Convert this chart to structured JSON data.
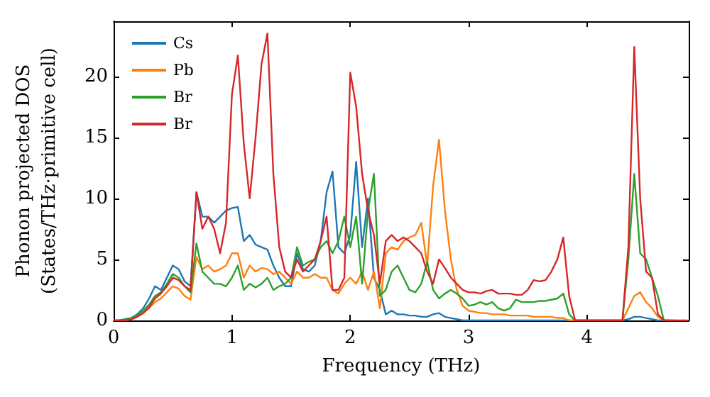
{
  "chart_data": {
    "type": "line",
    "xlabel": "Frequency (THz)",
    "ylabel": "Phonon projected DOS\n(States/THz·primitive cell)",
    "x": [
      0,
      0.05,
      0.1,
      0.15,
      0.2,
      0.25,
      0.3,
      0.35,
      0.4,
      0.45,
      0.5,
      0.55,
      0.6,
      0.65,
      0.7,
      0.75,
      0.8,
      0.85,
      0.9,
      0.95,
      1,
      1.05,
      1.1,
      1.15,
      1.2,
      1.25,
      1.3,
      1.35,
      1.4,
      1.45,
      1.5,
      1.55,
      1.6,
      1.65,
      1.7,
      1.75,
      1.8,
      1.85,
      1.9,
      1.95,
      2,
      2.05,
      2.1,
      2.15,
      2.2,
      2.25,
      2.3,
      2.35,
      2.4,
      2.45,
      2.5,
      2.55,
      2.6,
      2.65,
      2.7,
      2.75,
      2.8,
      2.85,
      2.9,
      2.95,
      3,
      3.05,
      3.1,
      3.15,
      3.2,
      3.25,
      3.3,
      3.35,
      3.4,
      3.45,
      3.5,
      3.55,
      3.6,
      3.65,
      3.7,
      3.75,
      3.8,
      3.85,
      3.9,
      3.95,
      4,
      4.05,
      4.1,
      4.15,
      4.2,
      4.25,
      4.3,
      4.35,
      4.4,
      4.45,
      4.5,
      4.55,
      4.6,
      4.65,
      4.7,
      4.75,
      4.8,
      4.85
    ],
    "series": [
      {
        "name": "Cs",
        "color": "#1f77b4",
        "values": [
          0,
          0,
          0.1,
          0.2,
          0.5,
          1,
          1.8,
          2.8,
          2.5,
          3.5,
          4.5,
          4.2,
          3.2,
          2.8,
          10.5,
          8.5,
          8.5,
          8,
          8.5,
          9,
          9.2,
          9.3,
          6.5,
          7,
          6.2,
          6,
          5.8,
          4.5,
          3.5,
          2.8,
          2.8,
          5.5,
          4.2,
          4,
          4.5,
          6.5,
          10.5,
          12.2,
          6,
          5.5,
          7,
          13,
          6,
          10,
          3.5,
          2.5,
          0.5,
          0.8,
          0.5,
          0.5,
          0.4,
          0.4,
          0.3,
          0.3,
          0.5,
          0.6,
          0.3,
          0.2,
          0.1,
          0,
          0,
          0,
          0,
          0,
          0,
          0,
          0,
          0,
          0,
          0,
          0,
          0,
          0,
          0,
          0,
          0,
          0,
          0,
          0,
          0,
          0,
          0,
          0,
          0,
          0,
          0,
          0,
          0.1,
          0.3,
          0.3,
          0.2,
          0.1,
          0,
          0,
          0,
          null,
          null,
          null
        ]
      },
      {
        "name": "Pb",
        "color": "#ff7f0e",
        "values": [
          null,
          null,
          0,
          0.1,
          0.3,
          0.6,
          1,
          1.5,
          1.8,
          2.3,
          2.8,
          2.6,
          2,
          1.7,
          5.2,
          4.2,
          4.5,
          4,
          4.2,
          4.5,
          5.5,
          5.5,
          3.5,
          4.5,
          4,
          4.3,
          4.2,
          3.8,
          4,
          3.5,
          3,
          4,
          3.5,
          3.5,
          3.8,
          3.5,
          3.5,
          2.5,
          2.2,
          3,
          3.5,
          3,
          4,
          2.5,
          4,
          1,
          5.5,
          6,
          5.8,
          6.5,
          6.8,
          7,
          8,
          4.5,
          11,
          14.8,
          9,
          5,
          2.5,
          1.2,
          0.8,
          0.7,
          0.6,
          0.6,
          0.5,
          0.5,
          0.5,
          0.4,
          0.4,
          0.4,
          0.4,
          0.3,
          0.3,
          0.3,
          0.3,
          0.2,
          0.2,
          0,
          0,
          0,
          0,
          0,
          0,
          0,
          0,
          0,
          0,
          1,
          2,
          2.3,
          1.5,
          1,
          0.3,
          0,
          0,
          null,
          null,
          null
        ]
      },
      {
        "name": "Br",
        "color": "#2ca02c",
        "values": [
          0,
          0,
          0.1,
          0.2,
          0.4,
          0.8,
          1.3,
          2,
          2.3,
          3,
          3.8,
          3.5,
          2.8,
          2.3,
          6.3,
          4,
          3.5,
          3,
          3,
          2.8,
          3.5,
          4.5,
          2.5,
          3,
          2.7,
          3,
          3.5,
          2.5,
          2.8,
          3,
          3.5,
          6,
          4.5,
          4.8,
          5,
          6,
          6.5,
          5.5,
          6.5,
          8.5,
          6,
          8.5,
          3,
          9,
          12,
          2,
          2.5,
          4,
          4.5,
          3.5,
          2.5,
          2.3,
          3,
          4.8,
          2.5,
          1.8,
          2.2,
          2.5,
          2.2,
          1.8,
          1.2,
          1.3,
          1.5,
          1.3,
          1.5,
          1,
          0.8,
          1,
          1.7,
          1.5,
          1.5,
          1.5,
          1.6,
          1.6,
          1.7,
          1.8,
          2.2,
          0.5,
          0,
          0,
          0,
          0,
          0,
          0,
          0,
          0,
          0,
          5,
          12,
          5.5,
          5,
          3.5,
          2,
          0,
          0,
          0,
          null,
          null
        ]
      },
      {
        "name": "Br",
        "color": "#d62728",
        "values": [
          0,
          0,
          0,
          0.1,
          0.3,
          0.6,
          1.1,
          1.8,
          2.2,
          2.8,
          3.5,
          3.3,
          2.8,
          2.5,
          10.5,
          7.5,
          8.5,
          7.5,
          5.5,
          8,
          18.5,
          21.7,
          14.5,
          10,
          15,
          21,
          23.5,
          12,
          6,
          4,
          3.5,
          5,
          4,
          4.5,
          5,
          6.5,
          8.5,
          2.5,
          2.5,
          3.5,
          20.3,
          17.5,
          12,
          9,
          7,
          3,
          6.5,
          7,
          6.5,
          6.8,
          6.5,
          6,
          5.5,
          4,
          3,
          5,
          4.3,
          3.5,
          3,
          2.5,
          2.3,
          2.3,
          2.2,
          2.4,
          2.5,
          2.2,
          2.2,
          2.2,
          2.1,
          2.1,
          2.5,
          3.3,
          3.2,
          3.3,
          4,
          5,
          6.8,
          2,
          0,
          0,
          0,
          0,
          0,
          0,
          0,
          0,
          0,
          6,
          22.4,
          10,
          4,
          3.5,
          0.5,
          0,
          0,
          0,
          0,
          0
        ]
      }
    ],
    "xlim": [
      0,
      4.86
    ],
    "xticks": [
      0,
      1,
      2,
      3,
      4
    ],
    "ylim": [
      0,
      24.5
    ],
    "yticks": [
      0,
      5,
      10,
      15,
      20
    ],
    "grid": false,
    "legend": "top left",
    "marker": "none",
    "line_style": "solid"
  }
}
